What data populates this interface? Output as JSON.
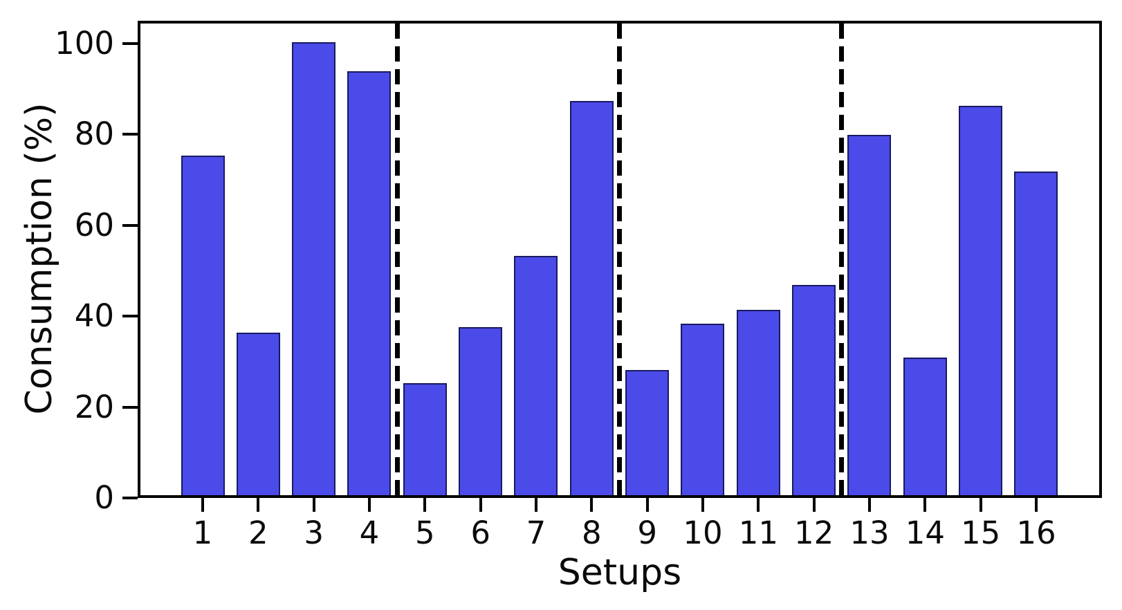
{
  "figure": {
    "background": "#ffffff"
  },
  "chart_data": {
    "type": "bar",
    "title": "",
    "xlabel": "Setups",
    "ylabel": "Consumption (%)",
    "categories": [
      "1",
      "2",
      "3",
      "4",
      "5",
      "6",
      "7",
      "8",
      "9",
      "10",
      "11",
      "12",
      "13",
      "14",
      "15",
      "16"
    ],
    "values": [
      75,
      36,
      100,
      93.5,
      25,
      37.3,
      53,
      87,
      27.8,
      38,
      41,
      46.5,
      79.5,
      30.5,
      86,
      71.5
    ],
    "ylim": [
      0,
      104
    ],
    "yticks": [
      0,
      20,
      40,
      60,
      80,
      100
    ],
    "grid": false,
    "legend": null,
    "bar_color": "#4B4BE9",
    "bar_edge_color": "#101046",
    "axis_color": "#000000",
    "divider_after_categories": [
      4,
      8,
      12
    ],
    "divider_style": "dashed",
    "divider_color": "#000000"
  }
}
